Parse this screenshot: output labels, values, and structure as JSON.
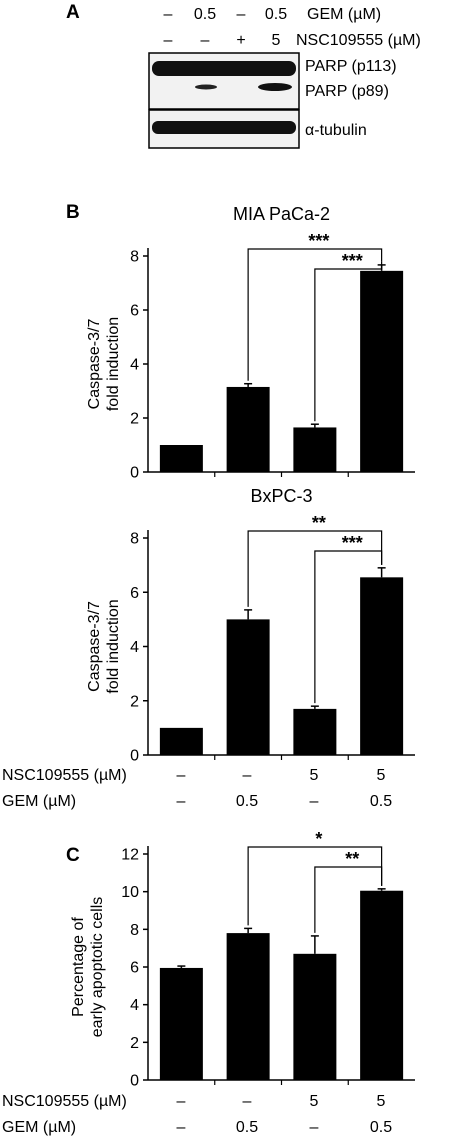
{
  "panel_a": {
    "letter": "A",
    "rows": [
      {
        "label": "GEM (µM)",
        "values": [
          "–",
          "0.5",
          "–",
          "0.5"
        ]
      },
      {
        "label": "NSC109555 (µM)",
        "values": [
          "–",
          "–",
          "+",
          "5"
        ]
      }
    ],
    "bands": [
      "PARP (p113)",
      "PARP (p89)",
      "α-tubulin"
    ]
  },
  "conditions": {
    "rows": [
      {
        "label": "NSC109555 (µM)",
        "values": [
          "–",
          "–",
          "5",
          "5"
        ]
      },
      {
        "label": "GEM (µM)",
        "values": [
          "–",
          "0.5",
          "–",
          "0.5"
        ]
      }
    ]
  },
  "chart_data": [
    {
      "panel": "B",
      "type": "bar",
      "title": "MIA PaCa-2",
      "ylabel": [
        "Caspase-3/7",
        "fold induction"
      ],
      "ylim": [
        0,
        8
      ],
      "yticks": [
        0,
        2,
        4,
        6,
        8
      ],
      "values": [
        1.0,
        3.15,
        1.65,
        7.45
      ],
      "errors": [
        0.0,
        0.12,
        0.12,
        0.22
      ],
      "significance": [
        {
          "from": 1,
          "to": 3,
          "label": "***"
        },
        {
          "from": 2,
          "to": 3,
          "label": "***"
        }
      ]
    },
    {
      "panel": "",
      "type": "bar",
      "title": "BxPC-3",
      "ylabel": [
        "Caspase-3/7",
        "fold induction"
      ],
      "ylim": [
        0,
        8
      ],
      "yticks": [
        0,
        2,
        4,
        6,
        8
      ],
      "values": [
        1.0,
        5.0,
        1.7,
        6.55
      ],
      "errors": [
        0.0,
        0.35,
        0.1,
        0.35
      ],
      "significance": [
        {
          "from": 1,
          "to": 3,
          "label": "**"
        },
        {
          "from": 2,
          "to": 3,
          "label": "***"
        }
      ]
    },
    {
      "panel": "C",
      "type": "bar",
      "title": "",
      "ylabel": [
        "Percentage of",
        "early apoptotic cells"
      ],
      "ylim": [
        0,
        12
      ],
      "yticks": [
        0,
        2,
        4,
        6,
        8,
        10,
        12
      ],
      "values": [
        5.95,
        7.8,
        6.7,
        10.05
      ],
      "errors": [
        0.1,
        0.25,
        0.95,
        0.1
      ],
      "significance": [
        {
          "from": 1,
          "to": 3,
          "label": "*"
        },
        {
          "from": 2,
          "to": 3,
          "label": "**"
        }
      ]
    }
  ]
}
